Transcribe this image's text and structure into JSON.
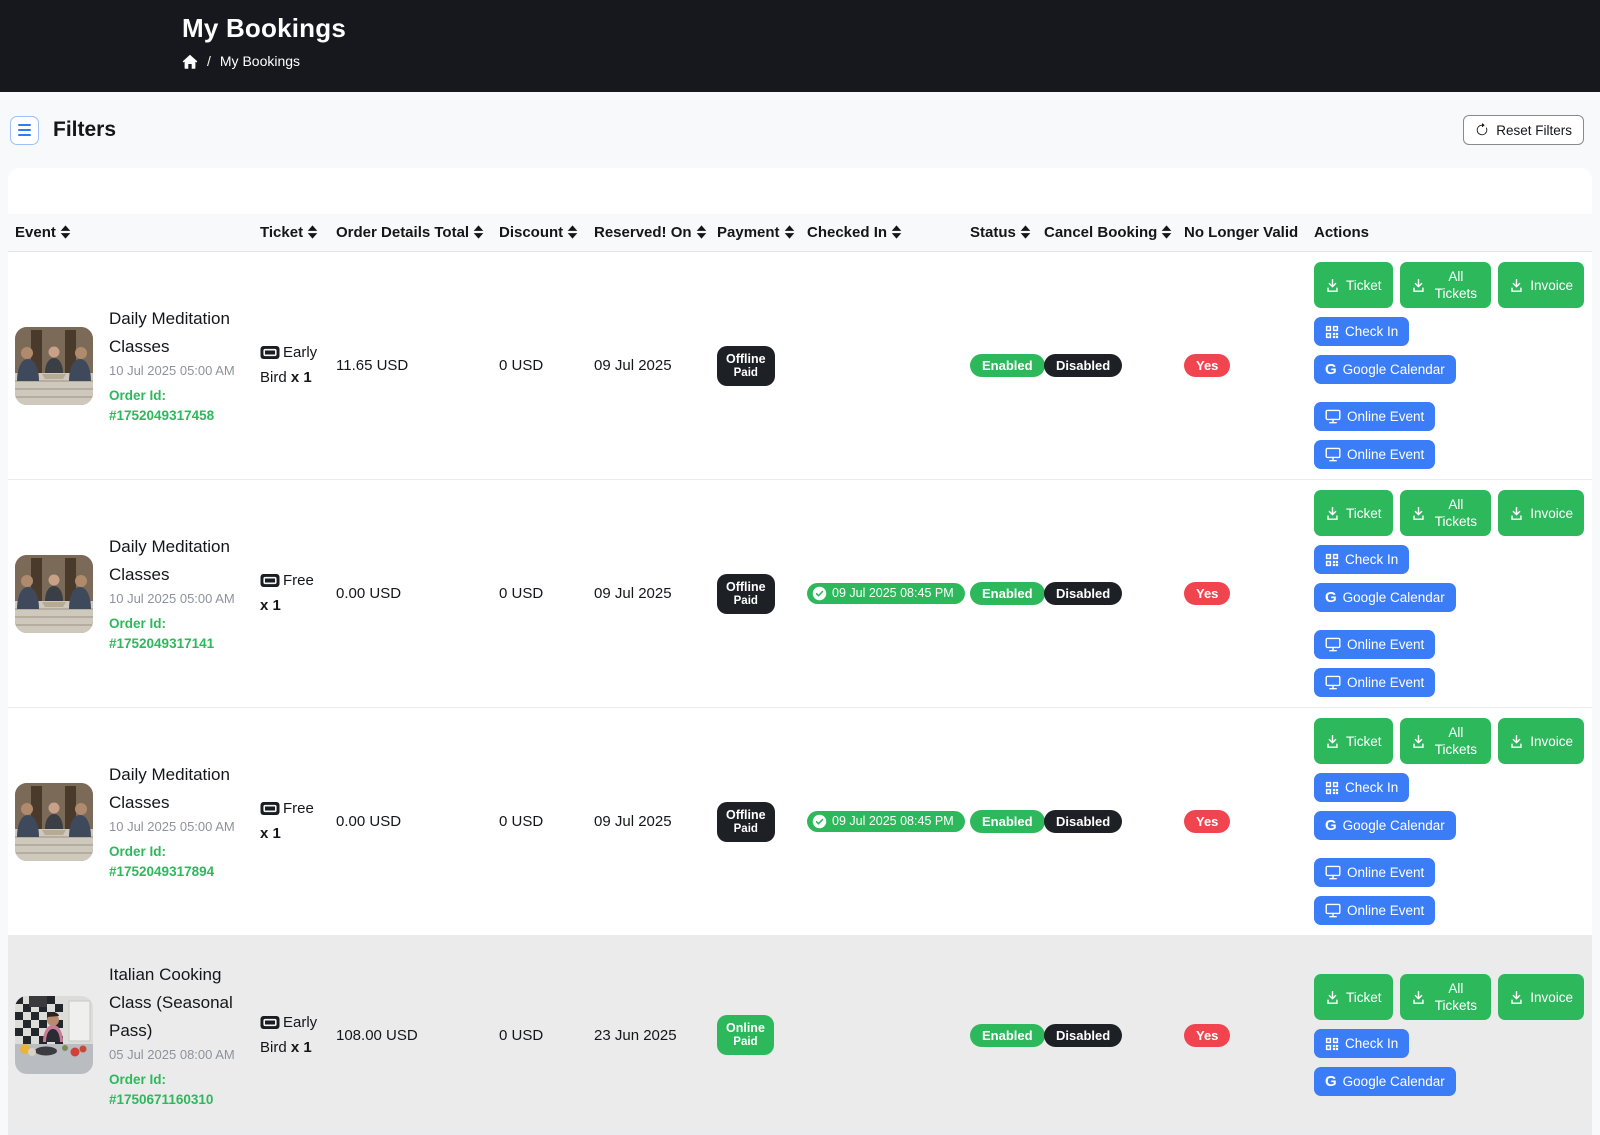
{
  "header": {
    "title": "My Bookings",
    "breadcrumb": {
      "separator": "/",
      "current": "My Bookings"
    }
  },
  "filters": {
    "label": "Filters",
    "reset_label": "Reset Filters"
  },
  "colors": {
    "header_bg": "#16181d",
    "page_bg": "#f8f9fa",
    "green": "#2eb85c",
    "blue": "#3b7df7",
    "red": "#f0444e",
    "dark_badge": "#1d2126",
    "muted": "#8d939c",
    "row_highlight": "#ebebeb"
  },
  "table": {
    "columns": [
      {
        "label": "Event",
        "sortable": true
      },
      {
        "label": "Ticket",
        "sortable": true
      },
      {
        "label": "Order Details Total",
        "sortable": true
      },
      {
        "label": "Discount",
        "sortable": true
      },
      {
        "label": "Reserved! On",
        "sortable": true
      },
      {
        "label": "Payment",
        "sortable": true
      },
      {
        "label": "Checked In",
        "sortable": true
      },
      {
        "label": "Status",
        "sortable": true
      },
      {
        "label": "Cancel Booking",
        "sortable": true
      },
      {
        "label": "No Longer Valid",
        "sortable": false
      },
      {
        "label": "Actions",
        "sortable": false
      }
    ],
    "actions_def": {
      "ticket": {
        "label": "Ticket",
        "color": "green",
        "icon": "download-icon"
      },
      "all_tickets": {
        "label": "All Tickets",
        "color": "green",
        "icon": "download-icon"
      },
      "invoice": {
        "label": "Invoice",
        "color": "green",
        "icon": "download-icon"
      },
      "check_in": {
        "label": "Check In",
        "color": "blue",
        "icon": "qr-code-icon"
      },
      "google_calendar": {
        "label": "Google Calendar",
        "color": "blue",
        "icon": "google-icon"
      },
      "online_event": {
        "label": "Online Event",
        "color": "blue",
        "icon": "monitor-icon"
      }
    },
    "rows": [
      {
        "event": {
          "title": "Daily Meditation Classes",
          "datetime": "10 Jul 2025 05:00 AM",
          "order_id_label": "Order Id:",
          "order_id": "#1752049317458",
          "image": "meditation"
        },
        "ticket": {
          "name": "Early Bird",
          "qty": "x 1"
        },
        "order_total": "11.65 USD",
        "discount": "0 USD",
        "reserved_on": "09 Jul 2025",
        "payment": {
          "line1": "Offline",
          "line2": "Paid",
          "style": "dark"
        },
        "checked_in": null,
        "status": "Enabled",
        "cancel_booking": "Disabled",
        "no_longer_valid": "Yes",
        "action_lines": [
          [
            "ticket",
            "all_tickets",
            "invoice"
          ],
          [
            "check_in"
          ],
          [
            "google_calendar"
          ],
          [
            "online_event"
          ],
          [
            "online_event"
          ]
        ],
        "highlight": false
      },
      {
        "event": {
          "title": "Daily Meditation Classes",
          "datetime": "10 Jul 2025 05:00 AM",
          "order_id_label": "Order Id:",
          "order_id": "#1752049317141",
          "image": "meditation"
        },
        "ticket": {
          "name": "Free",
          "qty": "x 1"
        },
        "order_total": "0.00 USD",
        "discount": "0 USD",
        "reserved_on": "09 Jul 2025",
        "payment": {
          "line1": "Offline",
          "line2": "Paid",
          "style": "dark"
        },
        "checked_in": "09 Jul 2025 08:45 PM",
        "status": "Enabled",
        "cancel_booking": "Disabled",
        "no_longer_valid": "Yes",
        "action_lines": [
          [
            "ticket",
            "all_tickets",
            "invoice"
          ],
          [
            "check_in"
          ],
          [
            "google_calendar"
          ],
          [
            "online_event"
          ],
          [
            "online_event"
          ]
        ],
        "highlight": false
      },
      {
        "event": {
          "title": "Daily Meditation Classes",
          "datetime": "10 Jul 2025 05:00 AM",
          "order_id_label": "Order Id:",
          "order_id": "#1752049317894",
          "image": "meditation"
        },
        "ticket": {
          "name": "Free",
          "qty": "x 1"
        },
        "order_total": "0.00 USD",
        "discount": "0 USD",
        "reserved_on": "09 Jul 2025",
        "payment": {
          "line1": "Offline",
          "line2": "Paid",
          "style": "dark"
        },
        "checked_in": "09 Jul 2025 08:45 PM",
        "status": "Enabled",
        "cancel_booking": "Disabled",
        "no_longer_valid": "Yes",
        "action_lines": [
          [
            "ticket",
            "all_tickets",
            "invoice"
          ],
          [
            "check_in"
          ],
          [
            "google_calendar"
          ],
          [
            "online_event"
          ],
          [
            "online_event"
          ]
        ],
        "highlight": false
      },
      {
        "event": {
          "title": "Italian Cooking Class (Seasonal Pass)",
          "datetime": "05 Jul 2025 08:00 AM",
          "order_id_label": "Order Id:",
          "order_id": "#1750671160310",
          "image": "cooking"
        },
        "ticket": {
          "name": "Early Bird",
          "qty": "x 1"
        },
        "order_total": "108.00 USD",
        "discount": "0 USD",
        "reserved_on": "23 Jun 2025",
        "payment": {
          "line1": "Online",
          "line2": "Paid",
          "style": "green"
        },
        "checked_in": null,
        "status": "Enabled",
        "cancel_booking": "Disabled",
        "no_longer_valid": "Yes",
        "action_lines": [
          [
            "ticket",
            "all_tickets",
            "invoice"
          ],
          [
            "check_in"
          ],
          [
            "google_calendar"
          ]
        ],
        "highlight": true
      }
    ]
  }
}
